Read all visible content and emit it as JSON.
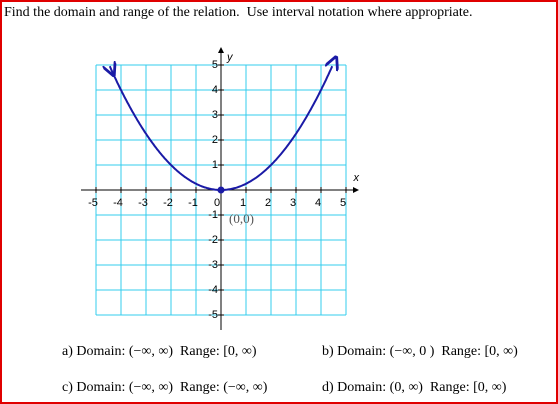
{
  "question": "Find the domain and range of the relation.  Use interval notation where appropriate.",
  "graph": {
    "x_label": "x",
    "y_label": "y",
    "x_ticks": [
      -5,
      -4,
      -3,
      -2,
      -1,
      0,
      1,
      2,
      3,
      4,
      5
    ],
    "y_ticks": [
      5,
      4,
      3,
      2,
      1,
      -1,
      -2,
      -3,
      -4,
      -5
    ],
    "point_label": "(0,0)"
  },
  "options": [
    "a) Domain: (−∞, ∞)  Range: [0, ∞)",
    "b) Domain: (−∞, 0 )  Range: [0, ∞)",
    "c) Domain: (−∞, ∞)  Range: (−∞, ∞)",
    "d) Domain: (0, ∞)  Range: [0, ∞)"
  ]
}
